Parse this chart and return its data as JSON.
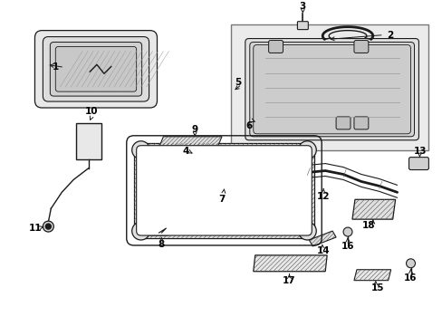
{
  "bg_color": "#ffffff",
  "line_color": "#1a1a1a",
  "hatch_color": "#555555",
  "label_color": "#000000",
  "fig_width": 4.89,
  "fig_height": 3.6,
  "dpi": 100,
  "label_fontsize": 7.5,
  "label_fontweight": "bold"
}
